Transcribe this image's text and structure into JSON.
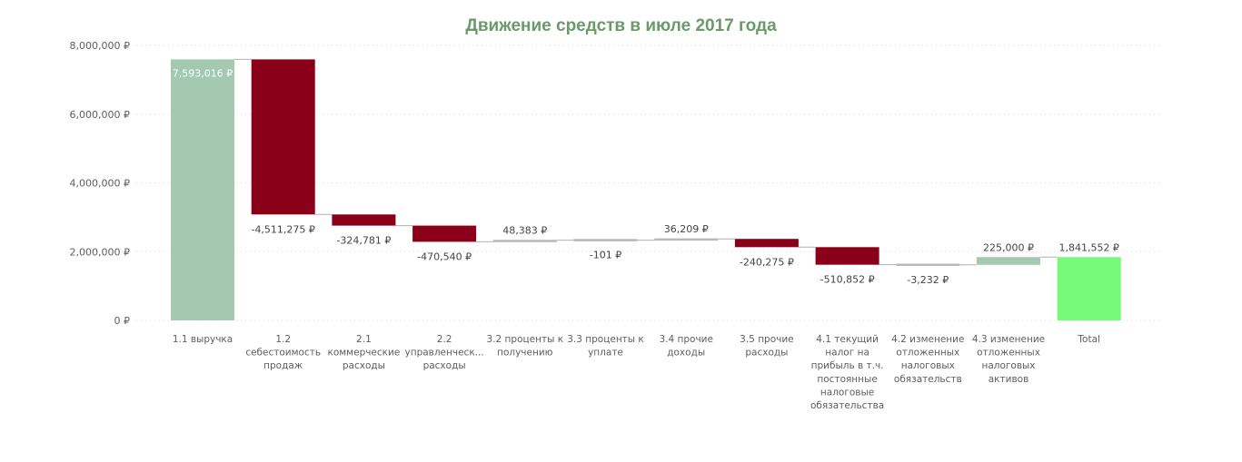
{
  "colors": {
    "title": "#6a9a6a",
    "increase": "#a3c9b0",
    "decrease": "#890018",
    "small_change": "#b8b8b8",
    "total": "#77fa7a",
    "connector": "#b0b0b0",
    "grid": "#d8d8d8"
  },
  "chart_data": {
    "type": "waterfall",
    "title": "Движение средств в июле 2017 года",
    "xlabel": "",
    "ylabel": "",
    "ylim": [
      0,
      8000000
    ],
    "y_ticks": [
      {
        "value": 0,
        "label": "0 ₽"
      },
      {
        "value": 2000000,
        "label": "2,000,000 ₽"
      },
      {
        "value": 4000000,
        "label": "4,000,000 ₽"
      },
      {
        "value": 6000000,
        "label": "6,000,000 ₽"
      },
      {
        "value": 8000000,
        "label": "8,000,000 ₽"
      }
    ],
    "grid": true,
    "legend": "none",
    "steps": [
      {
        "category": [
          "1.1 выручка"
        ],
        "value": 7593016,
        "label": "7,593,016 ₽",
        "kind": "increase"
      },
      {
        "category": [
          "1.2",
          "себестоимость",
          "продаж"
        ],
        "value": -4511275,
        "label": "-4,511,275 ₽",
        "kind": "decrease"
      },
      {
        "category": [
          "2.1",
          "коммерческие",
          "расходы"
        ],
        "value": -324781,
        "label": "-324,781 ₽",
        "kind": "decrease"
      },
      {
        "category": [
          "2.2",
          "управленческ...",
          "расходы"
        ],
        "value": -470540,
        "label": "-470,540 ₽",
        "kind": "decrease"
      },
      {
        "category": [
          "3.2 проценты к",
          "получению"
        ],
        "value": 48383,
        "label": "48,383 ₽",
        "kind": "small"
      },
      {
        "category": [
          "3.3 проценты к",
          "уплате"
        ],
        "value": -101,
        "label": "-101 ₽",
        "kind": "small"
      },
      {
        "category": [
          "3.4 прочие",
          "доходы"
        ],
        "value": 36209,
        "label": "36,209 ₽",
        "kind": "small"
      },
      {
        "category": [
          "3.5 прочие",
          "расходы"
        ],
        "value": -240275,
        "label": "-240,275 ₽",
        "kind": "decrease"
      },
      {
        "category": [
          "4.1 текущий",
          "налог на",
          "прибыль в т.ч.",
          "постоянные",
          "налоговые",
          "обязательства"
        ],
        "value": -510852,
        "label": "-510,852 ₽",
        "kind": "decrease"
      },
      {
        "category": [
          "4.2 изменение",
          "отложенных",
          "налоговых",
          "обязательств"
        ],
        "value": -3232,
        "label": "-3,232 ₽",
        "kind": "small"
      },
      {
        "category": [
          "4.3 изменение",
          "отложенных",
          "налоговых",
          "активов"
        ],
        "value": 225000,
        "label": "225,000 ₽",
        "kind": "increase"
      },
      {
        "category": [
          "Total"
        ],
        "value": 1841552,
        "label": "1,841,552 ₽",
        "kind": "total"
      }
    ]
  }
}
